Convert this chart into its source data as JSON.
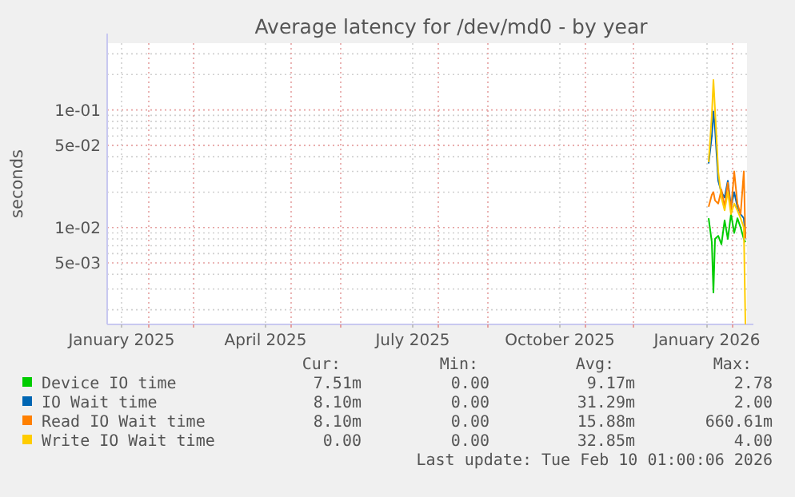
{
  "chart_data": {
    "type": "line",
    "title": "Average latency for /dev/md0 - by year",
    "ylabel": "seconds",
    "log": "y",
    "xlim": [
      "2025-01-06",
      "2026-02-10"
    ],
    "xticks": [
      {
        "value": "2025-02-01",
        "label": null
      },
      {
        "value": "2025-03-01",
        "label": null
      },
      {
        "value": "2025-05-01",
        "label": null
      },
      {
        "value": "2025-06-01",
        "label": null
      },
      {
        "value": "2025-08-01",
        "label": null
      },
      {
        "value": "2025-09-01",
        "label": null
      },
      {
        "value": "2025-11-01",
        "label": null
      },
      {
        "value": "2025-12-01",
        "label": null
      },
      {
        "value": "2026-02-01",
        "label": null
      },
      {
        "value": "2025-01-15",
        "label": "January 2025"
      },
      {
        "value": "2025-04-15",
        "label": "April 2025"
      },
      {
        "value": "2025-07-16",
        "label": "July 2025"
      },
      {
        "value": "2025-10-16",
        "label": "October 2025"
      },
      {
        "value": "2026-01-16",
        "label": "January 2026"
      }
    ],
    "ylim": [
      0.0015,
      0.37
    ],
    "yticks": [
      {
        "value": 0.002,
        "label": null
      },
      {
        "value": 0.003,
        "label": null
      },
      {
        "value": 0.004,
        "label": null
      },
      {
        "value": 0.005,
        "label": "5e-03"
      },
      {
        "value": 0.006,
        "label": null
      },
      {
        "value": 0.007,
        "label": null
      },
      {
        "value": 0.008,
        "label": null
      },
      {
        "value": 0.009,
        "label": null
      },
      {
        "value": 0.01,
        "label": "1e-02"
      },
      {
        "value": 0.02,
        "label": null
      },
      {
        "value": 0.03,
        "label": null
      },
      {
        "value": 0.04,
        "label": null
      },
      {
        "value": 0.05,
        "label": "5e-02"
      },
      {
        "value": 0.06,
        "label": null
      },
      {
        "value": 0.07,
        "label": null
      },
      {
        "value": 0.08,
        "label": null
      },
      {
        "value": 0.09,
        "label": null
      },
      {
        "value": 0.1,
        "label": "1e-01"
      },
      {
        "value": 0.2,
        "label": null
      },
      {
        "value": 0.3,
        "label": null
      }
    ],
    "grid": true,
    "legend": "bottom",
    "line_style": "solid",
    "x": [
      "2026-01-17",
      "2026-01-19",
      "2026-01-20",
      "2026-01-21",
      "2026-01-23",
      "2026-01-25",
      "2026-01-27",
      "2026-01-29",
      "2026-01-31",
      "2026-02-02",
      "2026-02-04",
      "2026-02-06",
      "2026-02-08",
      "2026-02-09"
    ],
    "series": [
      {
        "name": "Device IO time",
        "color": "#00cc00",
        "values": [
          0.012,
          0.0075,
          0.0028,
          0.008,
          0.0085,
          0.0072,
          0.0115,
          0.008,
          0.013,
          0.009,
          0.012,
          0.01,
          0.008,
          0.0075
        ]
      },
      {
        "name": "IO Wait time",
        "color": "#0066b3",
        "values": [
          0.035,
          0.06,
          0.097,
          0.07,
          0.025,
          0.02,
          0.018,
          0.025,
          0.015,
          0.02,
          0.015,
          0.013,
          0.012,
          0.0081
        ]
      },
      {
        "name": "Read IO Wait time",
        "color": "#ff8000",
        "values": [
          0.015,
          0.019,
          0.02,
          0.017,
          0.016,
          0.021,
          0.015,
          0.024,
          0.014,
          0.03,
          0.016,
          0.013,
          0.03,
          0.0081
        ]
      },
      {
        "name": "Write IO Wait time",
        "color": "#ffcc00",
        "values": [
          0.036,
          0.09,
          0.18,
          0.1,
          0.03,
          0.018,
          0.014,
          0.02,
          0.013,
          0.016,
          0.014,
          0.012,
          0.01,
          0.0015
        ]
      }
    ],
    "annotations": [
      "Cur:",
      "Min:",
      "Avg:",
      "Max:",
      "7.51m",
      "0.00",
      "9.17m",
      "2.78",
      "8.10m",
      "0.00",
      "31.29m",
      "2.00",
      "8.10m",
      "0.00",
      "15.88m",
      "660.61m",
      "0.00",
      "0.00",
      "32.85m",
      "4.00",
      "Last update: Tue Feb 10 01:00:06 2026"
    ]
  }
}
